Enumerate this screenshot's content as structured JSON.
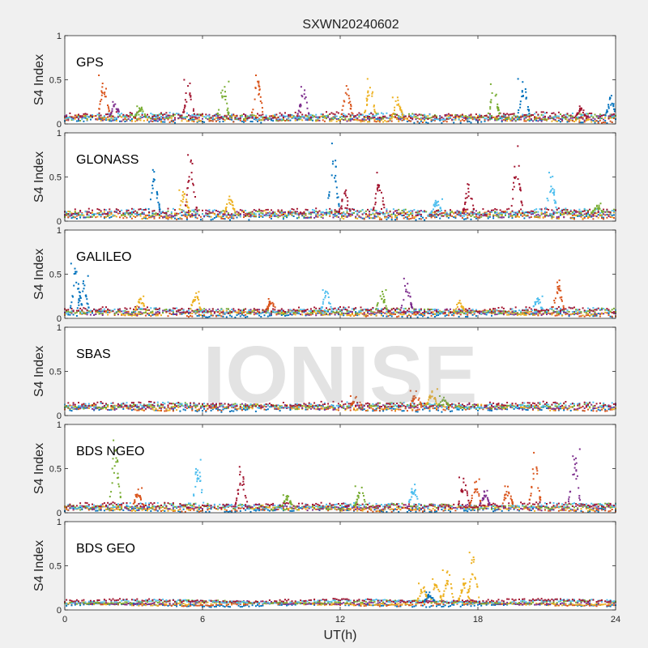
{
  "title": "SXWN20240602",
  "watermark": "IONISE",
  "colors": {
    "background": "#f0f0f0",
    "axes_bg": "#ffffff",
    "series": [
      "#0072BD",
      "#D95319",
      "#EDB120",
      "#7E2F8E",
      "#77AC30",
      "#4DBEEE",
      "#A2142F"
    ]
  },
  "chart_data": [
    {
      "type": "scatter",
      "panel_label": "GPS",
      "ylabel": "S4 Index",
      "ylim": [
        0,
        1
      ],
      "yticks": [
        0,
        0.5,
        1
      ],
      "ytick_labels": [
        "0",
        "0.5",
        "1"
      ],
      "xlim": [
        0,
        24
      ],
      "xticks": [
        0,
        6,
        12,
        18,
        24
      ],
      "baseline": 0.07,
      "noise": 0.06,
      "peaks": [
        {
          "t": 1.7,
          "v": 0.55,
          "s": 1
        },
        {
          "t": 2.2,
          "v": 0.25,
          "s": 3
        },
        {
          "t": 3.3,
          "v": 0.2,
          "s": 4
        },
        {
          "t": 5.4,
          "v": 0.5,
          "s": 6
        },
        {
          "t": 6.9,
          "v": 0.48,
          "s": 4
        },
        {
          "t": 8.4,
          "v": 0.55,
          "s": 1
        },
        {
          "t": 10.4,
          "v": 0.42,
          "s": 3
        },
        {
          "t": 12.3,
          "v": 0.43,
          "s": 1
        },
        {
          "t": 13.3,
          "v": 0.51,
          "s": 2
        },
        {
          "t": 14.5,
          "v": 0.3,
          "s": 2
        },
        {
          "t": 18.7,
          "v": 0.45,
          "s": 4
        },
        {
          "t": 20.0,
          "v": 0.51,
          "s": 0
        },
        {
          "t": 22.5,
          "v": 0.2,
          "s": 6
        },
        {
          "t": 23.8,
          "v": 0.32,
          "s": 0
        }
      ]
    },
    {
      "type": "scatter",
      "panel_label": "GLONASS",
      "ylabel": "S4 Index",
      "ylim": [
        0,
        1
      ],
      "yticks": [
        0,
        0.5,
        1
      ],
      "ytick_labels": [
        "0",
        "0.5",
        "1"
      ],
      "xlim": [
        0,
        24
      ],
      "xticks": [
        0,
        6,
        12,
        18,
        24
      ],
      "baseline": 0.08,
      "noise": 0.07,
      "peaks": [
        {
          "t": 3.9,
          "v": 0.58,
          "s": 0
        },
        {
          "t": 5.5,
          "v": 0.75,
          "s": 6
        },
        {
          "t": 5.2,
          "v": 0.35,
          "s": 2
        },
        {
          "t": 7.2,
          "v": 0.28,
          "s": 2
        },
        {
          "t": 11.7,
          "v": 0.88,
          "s": 0
        },
        {
          "t": 12.2,
          "v": 0.35,
          "s": 6
        },
        {
          "t": 13.7,
          "v": 0.55,
          "s": 6
        },
        {
          "t": 16.2,
          "v": 0.25,
          "s": 5
        },
        {
          "t": 17.6,
          "v": 0.42,
          "s": 6
        },
        {
          "t": 19.7,
          "v": 0.85,
          "s": 6
        },
        {
          "t": 21.2,
          "v": 0.55,
          "s": 5
        },
        {
          "t": 23.2,
          "v": 0.2,
          "s": 4
        }
      ]
    },
    {
      "type": "scatter",
      "panel_label": "GALILEO",
      "ylabel": "S4 Index",
      "ylim": [
        0,
        1
      ],
      "yticks": [
        0,
        0.5,
        1
      ],
      "ytick_labels": [
        "0",
        "0.5",
        "1"
      ],
      "xlim": [
        0,
        24
      ],
      "xticks": [
        0,
        6,
        12,
        18,
        24
      ],
      "baseline": 0.07,
      "noise": 0.05,
      "peaks": [
        {
          "t": 0.5,
          "v": 0.62,
          "s": 0
        },
        {
          "t": 0.8,
          "v": 0.48,
          "s": 0
        },
        {
          "t": 3.3,
          "v": 0.25,
          "s": 2
        },
        {
          "t": 5.7,
          "v": 0.3,
          "s": 2
        },
        {
          "t": 9.0,
          "v": 0.22,
          "s": 1
        },
        {
          "t": 11.4,
          "v": 0.32,
          "s": 5
        },
        {
          "t": 13.8,
          "v": 0.32,
          "s": 4
        },
        {
          "t": 14.9,
          "v": 0.45,
          "s": 3
        },
        {
          "t": 17.2,
          "v": 0.2,
          "s": 2
        },
        {
          "t": 20.6,
          "v": 0.25,
          "s": 5
        },
        {
          "t": 21.5,
          "v": 0.43,
          "s": 1
        }
      ]
    },
    {
      "type": "scatter",
      "panel_label": "SBAS",
      "ylabel": "S4 Index",
      "ylim": [
        0,
        1
      ],
      "yticks": [
        0,
        0.5,
        1
      ],
      "ytick_labels": [
        "0",
        "0.5",
        "1"
      ],
      "xlim": [
        0,
        24
      ],
      "xticks": [
        0,
        6,
        12,
        18,
        24
      ],
      "baseline": 0.1,
      "noise": 0.05,
      "peaks": [
        {
          "t": 12.7,
          "v": 0.22,
          "s": 1
        },
        {
          "t": 15.3,
          "v": 0.28,
          "s": 1
        },
        {
          "t": 16.0,
          "v": 0.3,
          "s": 2
        },
        {
          "t": 16.5,
          "v": 0.22,
          "s": 4
        }
      ]
    },
    {
      "type": "scatter",
      "panel_label": "BDS NGEO",
      "ylabel": "S4 Index",
      "ylim": [
        0,
        1
      ],
      "yticks": [
        0,
        0.5,
        1
      ],
      "ytick_labels": [
        "0",
        "0.5",
        "1"
      ],
      "xlim": [
        0,
        24
      ],
      "xticks": [
        0,
        6,
        12,
        18,
        24
      ],
      "baseline": 0.06,
      "noise": 0.05,
      "peaks": [
        {
          "t": 2.2,
          "v": 0.82,
          "s": 4
        },
        {
          "t": 3.2,
          "v": 0.28,
          "s": 1
        },
        {
          "t": 5.8,
          "v": 0.6,
          "s": 5
        },
        {
          "t": 7.7,
          "v": 0.52,
          "s": 6
        },
        {
          "t": 9.7,
          "v": 0.2,
          "s": 4
        },
        {
          "t": 12.9,
          "v": 0.3,
          "s": 4
        },
        {
          "t": 15.2,
          "v": 0.32,
          "s": 5
        },
        {
          "t": 17.4,
          "v": 0.4,
          "s": 6
        },
        {
          "t": 17.9,
          "v": 0.38,
          "s": 1
        },
        {
          "t": 18.3,
          "v": 0.25,
          "s": 3
        },
        {
          "t": 19.3,
          "v": 0.3,
          "s": 1
        },
        {
          "t": 20.5,
          "v": 0.68,
          "s": 1
        },
        {
          "t": 22.2,
          "v": 0.72,
          "s": 3
        }
      ]
    },
    {
      "type": "scatter",
      "panel_label": "BDS GEO",
      "ylabel": "S4 Index",
      "ylim": [
        0,
        1
      ],
      "yticks": [
        0,
        0.5,
        1
      ],
      "ytick_labels": [
        "0",
        "0.5",
        "1"
      ],
      "xlim": [
        0,
        24
      ],
      "xticks": [
        0,
        6,
        12,
        18,
        24
      ],
      "xtick_labels": [
        "0",
        "6",
        "12",
        "18",
        "24"
      ],
      "xlabel": "UT(h)",
      "baseline": 0.08,
      "noise": 0.025,
      "peaks": [
        {
          "t": 15.6,
          "v": 0.3,
          "s": 2
        },
        {
          "t": 16.2,
          "v": 0.35,
          "s": 2
        },
        {
          "t": 16.7,
          "v": 0.45,
          "s": 2
        },
        {
          "t": 17.4,
          "v": 0.35,
          "s": 2
        },
        {
          "t": 17.8,
          "v": 0.65,
          "s": 2
        },
        {
          "t": 15.9,
          "v": 0.2,
          "s": 0
        }
      ]
    }
  ]
}
